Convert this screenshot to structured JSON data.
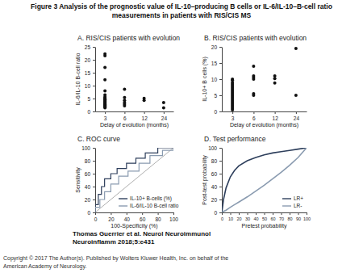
{
  "figure": {
    "title_lines": [
      "Figure 3 Analysis of the prognostic value of IL-10–producing B cells or IL-6/IL-10–B-cell ratio",
      "measurements in patients with RIS/CIS MS"
    ],
    "citation_lines": [
      "Thomas Guerrier et al. Neurol Neuroimmunol",
      "Neuroinflamm 2018;5:e431"
    ],
    "copyright_lines": [
      "Copyright © 2017 The Author(s). Published by Wolters Kluwer Health, Inc. on behalf of the",
      "American Academy of Neurology."
    ]
  },
  "chart_data": [
    {
      "type": "scatter",
      "title": "A. RIS/CIS patients with evolution",
      "x_label": "Delay of evolution (months)",
      "y_label": "IL-6/IL-10 B-cell ratio",
      "categories": [
        "3",
        "6",
        "12",
        "24"
      ],
      "x": [
        "3",
        "3",
        "3",
        "3",
        "3",
        "3",
        "3",
        "3",
        "3",
        "3",
        "3",
        "3",
        "3",
        "3",
        "3",
        "3",
        "3",
        "3",
        "3",
        "3",
        "6",
        "6",
        "6",
        "6",
        "6",
        "6",
        "12",
        "12",
        "24",
        "24"
      ],
      "y": [
        22.3,
        21.6,
        17,
        12.3,
        8,
        6.4,
        5.6,
        5.3,
        4.9,
        4.6,
        4.2,
        3.9,
        3.6,
        3.3,
        3.0,
        2.7,
        2.4,
        2.1,
        1.8,
        1.4,
        8.6,
        5.4,
        4.3,
        3.4,
        2.8,
        2.2,
        5.1,
        4.3,
        3.4,
        1.4
      ],
      "ylim": [
        0,
        25
      ],
      "yticks": [
        0,
        5,
        10,
        15,
        20,
        25
      ],
      "color": "#111111",
      "marker": "circle"
    },
    {
      "type": "scatter",
      "title": "B. RIS/CIS patients with evolution",
      "x_label": "Delay of evolution (months)",
      "y_label": "IL-10+ B cells (%)",
      "categories": [
        "3",
        "6",
        "12",
        "24"
      ],
      "x": [
        "3",
        "3",
        "3",
        "3",
        "3",
        "3",
        "3",
        "3",
        "3",
        "3",
        "3",
        "3",
        "3",
        "3",
        "3",
        "3",
        "3",
        "3",
        "3",
        "3",
        "6",
        "6",
        "6",
        "6",
        "6",
        "6",
        "12",
        "12",
        "12",
        "24",
        "24"
      ],
      "y": [
        10,
        9.7,
        9,
        8.5,
        8,
        7.5,
        7,
        6.5,
        6,
        5.5,
        5,
        4.5,
        4,
        3.5,
        3,
        2.5,
        2,
        1.5,
        1,
        0.5,
        14,
        11,
        10.5,
        10,
        5.5,
        5,
        11,
        10.2,
        8.8,
        19.5,
        5
      ],
      "ylim": [
        0,
        20
      ],
      "yticks": [
        0,
        5,
        10,
        15,
        20
      ],
      "color": "#111111",
      "marker": "circle"
    },
    {
      "type": "line",
      "title": "C. ROC curve",
      "x_label": "100-Specificity (%)",
      "y_label": "Sensitivity",
      "xlim": [
        0,
        100
      ],
      "xticks": [
        0,
        20,
        40,
        60,
        80,
        100
      ],
      "ylim": [
        0,
        100
      ],
      "yticks": [
        0,
        20,
        40,
        60,
        80,
        100
      ],
      "legend": "bottom-right",
      "series": [
        {
          "name": "IL-10+ B-cells (%)",
          "color": "#2e3f5c",
          "line_style": "solid",
          "x": [
            0,
            0,
            4,
            4,
            8,
            8,
            12,
            12,
            20,
            20,
            28,
            28,
            40,
            40,
            52,
            52,
            64,
            64,
            80,
            80,
            100
          ],
          "y": [
            0,
            12,
            12,
            28,
            28,
            40,
            40,
            52,
            52,
            60,
            60,
            68,
            68,
            76,
            76,
            84,
            84,
            92,
            92,
            100,
            100
          ]
        },
        {
          "name": "IL-6/IL-10 B-cell ratio",
          "color": "#8a9bb0",
          "line_style": "solid",
          "x": [
            0,
            0,
            6,
            6,
            12,
            12,
            20,
            20,
            30,
            30,
            42,
            42,
            56,
            56,
            70,
            70,
            86,
            86,
            100,
            100
          ],
          "y": [
            0,
            8,
            8,
            20,
            20,
            32,
            32,
            44,
            44,
            56,
            56,
            64,
            64,
            76,
            76,
            88,
            88,
            96,
            96,
            100
          ]
        }
      ]
    },
    {
      "type": "line",
      "title": "D. Test performance",
      "x_label": "Pretest probability",
      "y_label": "Post-test probability",
      "xlim": [
        0,
        100
      ],
      "xticks": [
        0,
        10,
        20,
        30,
        40,
        50,
        60,
        70,
        80,
        90,
        100
      ],
      "ylim": [
        0,
        100
      ],
      "yticks": [
        0,
        20,
        40,
        60,
        80,
        100
      ],
      "legend": "bottom-right",
      "series": [
        {
          "name": "LR+",
          "color": "#2e3f5c",
          "line_style": "solid",
          "x": [
            0,
            2,
            5,
            10,
            15,
            20,
            30,
            40,
            50,
            60,
            70,
            80,
            90,
            100
          ],
          "y": [
            0,
            20,
            38,
            55,
            65,
            72,
            80,
            85,
            89,
            92,
            94,
            96,
            98,
            100
          ]
        },
        {
          "name": "LR-",
          "color": "#8a9bb0",
          "line_style": "solid",
          "x": [
            0,
            2,
            5,
            10,
            15,
            20,
            30,
            40,
            50,
            60,
            70,
            80,
            90,
            100
          ],
          "y": [
            0,
            1.5,
            3.5,
            8,
            12,
            16,
            24,
            33,
            42,
            52,
            62,
            73,
            85,
            100
          ]
        }
      ]
    }
  ]
}
